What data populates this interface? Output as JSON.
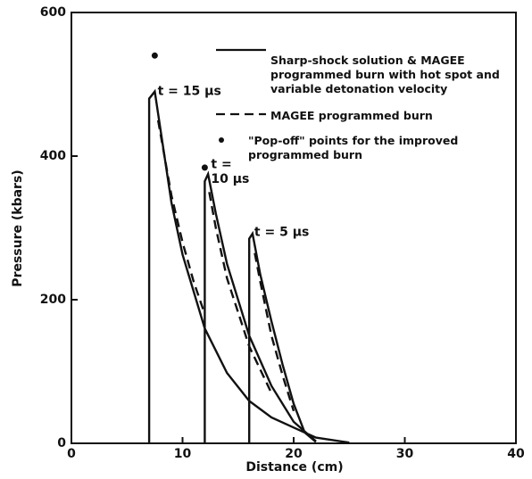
{
  "chart_data": {
    "type": "line",
    "xlabel": "Distance (cm)",
    "ylabel": "Pressure (kbars)",
    "xlim": [
      0,
      40
    ],
    "ylim": [
      0,
      600
    ],
    "xticks": [
      0,
      10,
      20,
      30,
      40
    ],
    "yticks": [
      0,
      200,
      400,
      600
    ],
    "series": [
      {
        "name": "Sharp-shock solution & MAGEE programmed burn with hot spot and variable detonation velocity",
        "style": "solid",
        "color": "#111",
        "x": [
          7,
          7,
          7.5,
          9,
          10,
          12,
          14,
          16,
          18,
          20,
          22,
          25,
          null,
          12,
          12,
          12.3,
          13,
          14,
          16,
          18,
          20,
          22,
          null,
          16,
          16,
          16.3,
          17,
          18,
          19,
          20,
          21,
          22
        ],
        "values": [
          0,
          480,
          490,
          335,
          263,
          160,
          98,
          59,
          36,
          22,
          8,
          1,
          null,
          0,
          365,
          375,
          320,
          250,
          150,
          80,
          30,
          3,
          null,
          0,
          285,
          292,
          235,
          170,
          110,
          55,
          15,
          2
        ]
      },
      {
        "name": "MAGEE programmed burn",
        "style": "dashed",
        "color": "#111",
        "x": [
          7.8,
          9,
          10,
          11,
          12,
          null,
          12.4,
          13,
          14,
          16,
          18,
          null,
          16.5,
          17,
          18,
          19,
          20
        ],
        "values": [
          450,
          345,
          280,
          225,
          180,
          null,
          350,
          300,
          230,
          135,
          70,
          null,
          265,
          225,
          150,
          95,
          45
        ]
      },
      {
        "name": "\"Pop-off\" points for the improved programmed burn",
        "style": "points",
        "color": "#111",
        "x": [
          7.5,
          12
        ],
        "values": [
          540,
          384
        ]
      }
    ],
    "annotations": [
      {
        "text": "t = 15 μs",
        "x": 7.6,
        "y": 490
      },
      {
        "text": "t =",
        "x": 12.4,
        "y": 388
      },
      {
        "text": "10 μs",
        "x": 12.4,
        "y": 368
      },
      {
        "text": "t = 5 μs",
        "x": 16.3,
        "y": 294
      }
    ]
  }
}
